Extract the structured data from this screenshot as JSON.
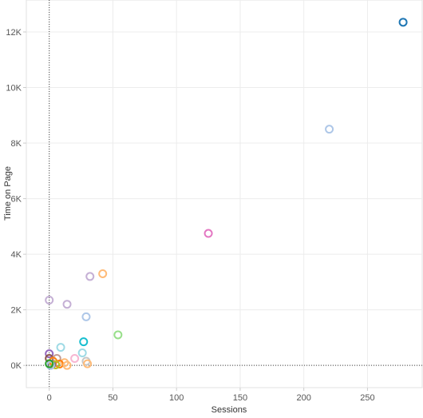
{
  "chart_data": {
    "type": "scatter",
    "title": "",
    "xlabel": "Sessions",
    "ylabel": "Time on Page",
    "xlim": [
      -18,
      293
    ],
    "ylim": [
      -800,
      13150
    ],
    "x_ticks": [
      0,
      50,
      100,
      150,
      200,
      250
    ],
    "x_tick_labels": [
      "0",
      "50",
      "100",
      "150",
      "200",
      "250"
    ],
    "y_ticks": [
      0,
      2000,
      4000,
      6000,
      8000,
      10000,
      12000
    ],
    "y_tick_labels": [
      "0K",
      "2K",
      "4K",
      "6K",
      "8K",
      "10K",
      "12K"
    ],
    "grid": true,
    "zero_lines": "dotted",
    "legend": "none",
    "points": [
      {
        "x": 278,
        "y": 12350,
        "color": "#1f77b4"
      },
      {
        "x": 220,
        "y": 8500,
        "color": "#aec7e8"
      },
      {
        "x": 125,
        "y": 4750,
        "color": "#e377c2"
      },
      {
        "x": 42,
        "y": 3300,
        "color": "#ffbb78"
      },
      {
        "x": 32,
        "y": 3200,
        "color": "#c5b0d5"
      },
      {
        "x": 0,
        "y": 2350,
        "color": "#c5b0d5"
      },
      {
        "x": 14,
        "y": 2200,
        "color": "#c5b0d5"
      },
      {
        "x": 29,
        "y": 1750,
        "color": "#aec7e8"
      },
      {
        "x": 54,
        "y": 1100,
        "color": "#98df8a"
      },
      {
        "x": 27,
        "y": 850,
        "color": "#17becf"
      },
      {
        "x": 9,
        "y": 650,
        "color": "#9edae5"
      },
      {
        "x": 26,
        "y": 450,
        "color": "#9edae5"
      },
      {
        "x": 0,
        "y": 420,
        "color": "#9467bd"
      },
      {
        "x": 0,
        "y": 250,
        "color": "#8c564b"
      },
      {
        "x": 6,
        "y": 250,
        "color": "#c49c94"
      },
      {
        "x": 20,
        "y": 250,
        "color": "#f7b6d2"
      },
      {
        "x": 29,
        "y": 150,
        "color": "#c7c7c7"
      },
      {
        "x": 30,
        "y": 60,
        "color": "#ffbb78"
      },
      {
        "x": 3,
        "y": 150,
        "color": "#ff7f0e"
      },
      {
        "x": 12,
        "y": 100,
        "color": "#ffbb78"
      },
      {
        "x": 8,
        "y": 50,
        "color": "#ff7f0e"
      },
      {
        "x": 14,
        "y": 0,
        "color": "#ffbb78"
      },
      {
        "x": 2,
        "y": 30,
        "color": "#7f7f7f"
      },
      {
        "x": 5,
        "y": 20,
        "color": "#bcbd22"
      },
      {
        "x": 1,
        "y": 0,
        "color": "#aec7e8"
      },
      {
        "x": 0,
        "y": 60,
        "color": "#2ca02c"
      }
    ]
  }
}
